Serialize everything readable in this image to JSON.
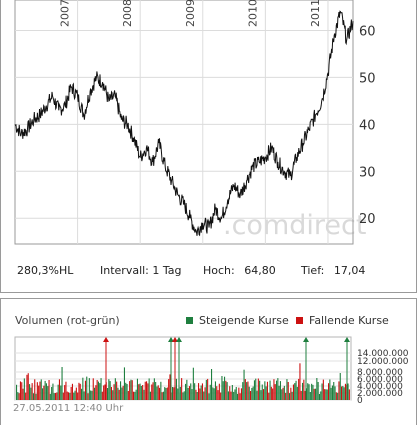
{
  "chart_data": [
    {
      "type": "line",
      "name": "price",
      "x_labels": [
        "2007",
        "2008",
        "2009",
        "2010",
        "2011"
      ],
      "y_ticks": [
        20,
        30,
        40,
        50,
        60
      ],
      "ylim": [
        14.5,
        66.5
      ],
      "grid": true,
      "watermark": ".comdirect",
      "series": [
        {
          "x": [
            2006.0,
            2006.1,
            2006.2,
            2006.3,
            2006.4,
            2006.5,
            2006.6,
            2006.7,
            2006.8,
            2006.9,
            2007.0,
            2007.1,
            2007.2,
            2007.3,
            2007.4,
            2007.5,
            2007.6,
            2007.7,
            2007.8,
            2007.9,
            2008.0,
            2008.1,
            2008.2,
            2008.3,
            2008.4,
            2008.5,
            2008.6,
            2008.7,
            2008.8,
            2008.9,
            2009.0,
            2009.1,
            2009.2,
            2009.3,
            2009.4,
            2009.5,
            2009.6,
            2009.7,
            2009.8,
            2009.9,
            2010.0,
            2010.1,
            2010.2,
            2010.3,
            2010.4,
            2010.5,
            2010.6,
            2010.7,
            2010.8,
            2010.9,
            2011.0,
            2011.1,
            2011.2,
            2011.3,
            2011.4
          ],
          "values": [
            40,
            38,
            39,
            41,
            42,
            44,
            46,
            43,
            44,
            48,
            46,
            42,
            47,
            50,
            49,
            45,
            46,
            41,
            40,
            37,
            33,
            35,
            32,
            36,
            31,
            28,
            25,
            23,
            20,
            17,
            19,
            18,
            22,
            20,
            24,
            27,
            25,
            28,
            31,
            32,
            33,
            35,
            32,
            30,
            29,
            33,
            36,
            39,
            42,
            45,
            51,
            59,
            64,
            58,
            62
          ]
        }
      ]
    },
    {
      "type": "bar",
      "name": "volume",
      "title": "Volumen (rot-grün)",
      "y_ticks": [
        "0",
        "2.000.000",
        "4.000.000",
        "6.000.000",
        "8.000.000",
        "12.000.000",
        "14.000.000"
      ],
      "legend": [
        {
          "label": "Steigende Kurse",
          "color": "#1f7f3f"
        },
        {
          "label": "Fallende Kurse",
          "color": "#cc1111"
        }
      ]
    }
  ],
  "stats": {
    "performance": "280,3%HL",
    "interval": "Intervall: 1 Tag",
    "high_label": "Hoch:",
    "high_value": "64,80",
    "low_label": "Tief:",
    "low_value": "17,04"
  },
  "volume": {
    "title": "Volumen (rot-grün)",
    "legend_up": "Steigende Kurse",
    "legend_down": "Fallende Kurse",
    "timestamp": "27.05.2011 12:40 Uhr"
  },
  "colors": {
    "up": "#1f7f3f",
    "down": "#cc1111",
    "line": "#111111",
    "grid": "#dcdcdc"
  }
}
